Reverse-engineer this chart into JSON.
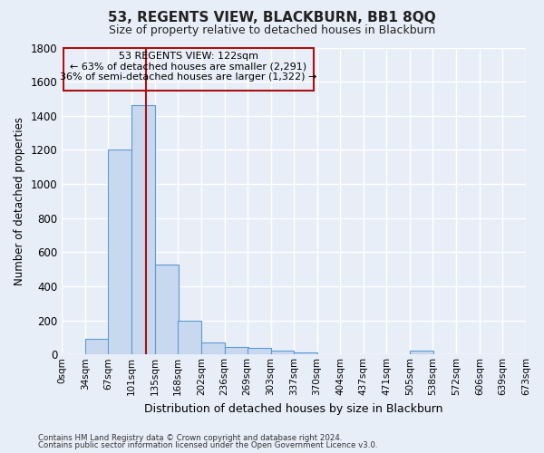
{
  "title": "53, REGENTS VIEW, BLACKBURN, BB1 8QQ",
  "subtitle": "Size of property relative to detached houses in Blackburn",
  "xlabel": "Distribution of detached houses by size in Blackburn",
  "ylabel": "Number of detached properties",
  "footer_line1": "Contains HM Land Registry data © Crown copyright and database right 2024.",
  "footer_line2": "Contains public sector information licensed under the Open Government Licence v3.0.",
  "bin_edges": [
    0,
    34,
    67,
    101,
    135,
    168,
    202,
    236,
    269,
    303,
    337,
    370,
    404,
    437,
    471,
    505,
    538,
    572,
    606,
    639,
    673
  ],
  "bin_labels": [
    "0sqm",
    "34sqm",
    "67sqm",
    "101sqm",
    "135sqm",
    "168sqm",
    "202sqm",
    "236sqm",
    "269sqm",
    "303sqm",
    "337sqm",
    "370sqm",
    "404sqm",
    "437sqm",
    "471sqm",
    "505sqm",
    "538sqm",
    "572sqm",
    "606sqm",
    "639sqm",
    "673sqm"
  ],
  "bar_values": [
    0,
    90,
    1200,
    1460,
    530,
    200,
    70,
    45,
    40,
    20,
    10,
    0,
    0,
    0,
    0,
    25,
    0,
    0,
    0,
    0
  ],
  "bar_color": "#c8d8ee",
  "bar_edge_color": "#5b9bd5",
  "property_size": 122,
  "red_line_color": "#aa1111",
  "annotation_text_line1": "53 REGENTS VIEW: 122sqm",
  "annotation_text_line2": "← 63% of detached houses are smaller (2,291)",
  "annotation_text_line3": "36% of semi-detached houses are larger (1,322) →",
  "annotation_box_color": "#aa1111",
  "ylim": [
    0,
    1800
  ],
  "yticks": [
    0,
    200,
    400,
    600,
    800,
    1000,
    1200,
    1400,
    1600,
    1800
  ],
  "background_color": "#e8eef8",
  "plot_bg_color": "#e8eef8",
  "grid_color": "#ffffff",
  "title_fontsize": 11,
  "subtitle_fontsize": 9
}
